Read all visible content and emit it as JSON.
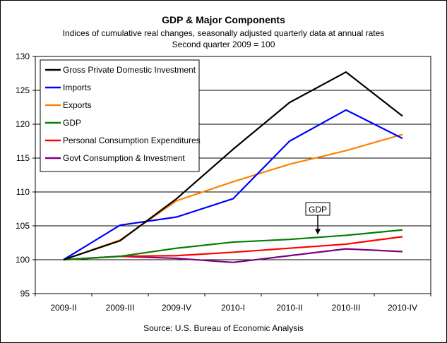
{
  "chart_data": {
    "type": "line",
    "title": "GDP & Major Components",
    "subtitle_lines": [
      "Indices of cumulative real changes, seasonally adjusted quarterly data at annual rates",
      "Second quarter 2009 = 100"
    ],
    "source": "Source: U.S. Bureau of Economic Analysis",
    "categories": [
      "2009-II",
      "2009-III",
      "2009-IV",
      "2010-I",
      "2010-II",
      "2010-III",
      "2010-IV"
    ],
    "ylim": [
      95,
      130
    ],
    "yticks": [
      95,
      100,
      105,
      110,
      115,
      120,
      125,
      130
    ],
    "grid": true,
    "legend_position": "top-left",
    "series": [
      {
        "name": "Gross Private Domestic Investment",
        "color": "#000000",
        "values": [
          100,
          102.8,
          109.0,
          116.3,
          123.2,
          127.7,
          121.2
        ]
      },
      {
        "name": "Imports",
        "color": "#0000ff",
        "values": [
          100,
          105.1,
          106.3,
          109.0,
          117.5,
          122.1,
          117.9
        ]
      },
      {
        "name": "Exports",
        "color": "#ff8000",
        "values": [
          100,
          102.9,
          108.7,
          111.5,
          114.1,
          116.1,
          118.5
        ]
      },
      {
        "name": "GDP",
        "color": "#008000",
        "values": [
          100,
          100.5,
          101.7,
          102.6,
          103.0,
          103.6,
          104.4
        ]
      },
      {
        "name": "Personal Consumption Expenditures",
        "color": "#ff0000",
        "values": [
          100,
          100.5,
          100.6,
          101.1,
          101.7,
          102.3,
          103.4
        ]
      },
      {
        "name": "Govt Consumption & Investment",
        "color": "#800080",
        "values": [
          100,
          100.5,
          100.2,
          99.6,
          100.6,
          101.6,
          101.2
        ]
      }
    ],
    "annotation": {
      "text": "GDP",
      "points_to_series": "GDP"
    }
  }
}
